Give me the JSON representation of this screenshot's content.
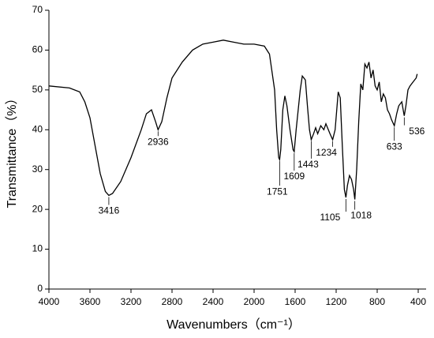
{
  "chart_data": {
    "type": "line",
    "x_label": "Wavenumbers（cm⁻¹）",
    "y_label": "Transmittance（%）",
    "xlim": [
      4000,
      400
    ],
    "xticks": [
      4000,
      3600,
      3200,
      2800,
      2400,
      2000,
      1600,
      1200,
      800,
      400
    ],
    "ylim": [
      0,
      70
    ],
    "yticks": [
      0,
      10,
      20,
      30,
      40,
      50,
      60,
      70
    ],
    "color": "#000000",
    "x": [
      4000,
      3800,
      3700,
      3650,
      3600,
      3550,
      3500,
      3450,
      3416,
      3380,
      3300,
      3200,
      3100,
      3050,
      3000,
      2960,
      2936,
      2900,
      2850,
      2800,
      2700,
      2600,
      2500,
      2400,
      2300,
      2200,
      2100,
      2000,
      1900,
      1850,
      1800,
      1780,
      1760,
      1751,
      1740,
      1720,
      1700,
      1680,
      1650,
      1620,
      1609,
      1590,
      1550,
      1530,
      1500,
      1480,
      1460,
      1443,
      1420,
      1400,
      1380,
      1350,
      1320,
      1300,
      1260,
      1234,
      1210,
      1180,
      1160,
      1140,
      1120,
      1105,
      1090,
      1070,
      1050,
      1030,
      1018,
      1000,
      980,
      960,
      940,
      920,
      900,
      880,
      860,
      840,
      820,
      800,
      780,
      760,
      740,
      720,
      700,
      680,
      660,
      633,
      610,
      590,
      560,
      540,
      536,
      520,
      500,
      480,
      450,
      420,
      410
    ],
    "values": [
      51,
      50.5,
      49.5,
      47,
      43,
      36,
      29,
      24.5,
      23.5,
      24,
      27,
      33,
      40,
      44,
      45,
      42,
      40,
      42,
      48,
      53,
      57,
      60,
      61.5,
      62,
      62.5,
      62,
      61.5,
      61.5,
      61,
      59,
      50,
      40,
      33,
      32.5,
      35,
      45,
      48.5,
      46,
      40,
      35,
      34.5,
      40,
      50,
      53.5,
      52.5,
      46,
      40,
      37.5,
      39,
      40.5,
      39,
      41,
      40,
      41.5,
      39,
      37.5,
      40,
      49.5,
      48,
      36,
      25,
      23,
      26,
      28.5,
      27.5,
      25,
      22.5,
      30,
      42,
      51.5,
      50,
      56.5,
      55.5,
      57,
      53,
      55,
      51,
      50,
      52,
      47,
      49,
      48,
      45,
      44,
      42.5,
      41,
      44,
      46,
      47,
      44,
      43.5,
      46,
      50,
      51,
      52,
      53,
      54
    ],
    "peaks": [
      3416,
      2936,
      1751,
      1609,
      1443,
      1234,
      1105,
      1018,
      633,
      536
    ]
  }
}
